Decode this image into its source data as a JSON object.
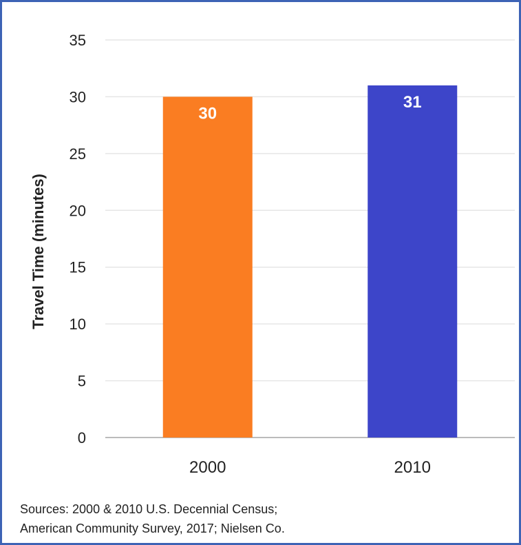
{
  "chart_data": {
    "type": "bar",
    "categories": [
      "2000",
      "2010"
    ],
    "values": [
      30,
      31
    ],
    "data_labels": [
      "30",
      "31"
    ],
    "bar_colors": [
      "#fa7d22",
      "#3d45c9"
    ],
    "title": "",
    "xlabel": "",
    "ylabel": "Travel Time (minutes)",
    "ylim": [
      0,
      35
    ],
    "yticks": [
      0,
      5,
      10,
      15,
      20,
      25,
      30,
      35
    ],
    "grid": true,
    "legend": "none"
  },
  "sources": {
    "line1": "Sources: 2000 & 2010 U.S. Decennial Census;",
    "line2": "American Community Survey, 2017; Nielsen Co."
  },
  "colors": {
    "frame_border": "#3d63b5",
    "grid": "#e6e6e6",
    "axis": "#bbbbbb",
    "text": "#222222"
  }
}
